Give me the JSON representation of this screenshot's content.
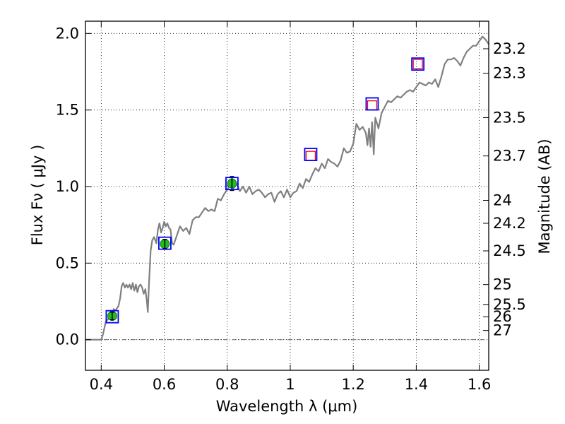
{
  "chart_data": {
    "type": "line",
    "xlabel": "Wavelength  λ (μm)",
    "ylabel": "Flux  Fν  ( μJy )",
    "y2label": "Magnitude (AB)",
    "xlim": [
      0.35,
      1.63
    ],
    "ylim": [
      -0.2,
      2.08
    ],
    "grid": true,
    "x_ticks": [
      {
        "value": 0.4,
        "label": "0.4"
      },
      {
        "value": 0.6,
        "label": "0.6"
      },
      {
        "value": 0.8,
        "label": "0.8"
      },
      {
        "value": 1.0,
        "label": "1"
      },
      {
        "value": 1.2,
        "label": "1.2"
      },
      {
        "value": 1.4,
        "label": "1.4"
      },
      {
        "value": 1.6,
        "label": "1.6"
      }
    ],
    "y_ticks": [
      {
        "value": 0.0,
        "label": "0.0"
      },
      {
        "value": 0.5,
        "label": "0.5"
      },
      {
        "value": 1.0,
        "label": "1.0"
      },
      {
        "value": 1.5,
        "label": "1.5"
      },
      {
        "value": 2.0,
        "label": "2.0"
      }
    ],
    "magnitude_ticks": [
      {
        "flux": 1.9,
        "label": "23.2"
      },
      {
        "flux": 1.74,
        "label": "23.3"
      },
      {
        "flux": 1.45,
        "label": "23.5"
      },
      {
        "flux": 1.2,
        "label": "23.7"
      },
      {
        "flux": 0.91,
        "label": "24"
      },
      {
        "flux": 0.76,
        "label": "24.2"
      },
      {
        "flux": 0.58,
        "label": "24.5"
      },
      {
        "flux": 0.36,
        "label": "25"
      },
      {
        "flux": 0.23,
        "label": "25.5"
      },
      {
        "flux": 0.15,
        "label": "26"
      },
      {
        "flux": 0.06,
        "label": "27"
      }
    ],
    "model_spectrum": {
      "color": "#808080",
      "x": [
        0.35,
        0.4,
        0.405,
        0.415,
        0.425,
        0.43,
        0.44,
        0.445,
        0.455,
        0.46,
        0.465,
        0.47,
        0.475,
        0.48,
        0.485,
        0.49,
        0.495,
        0.5,
        0.505,
        0.51,
        0.515,
        0.52,
        0.525,
        0.53,
        0.535,
        0.54,
        0.545,
        0.548,
        0.552,
        0.557,
        0.562,
        0.568,
        0.575,
        0.58,
        0.585,
        0.59,
        0.595,
        0.6,
        0.605,
        0.61,
        0.615,
        0.62,
        0.625,
        0.63,
        0.64,
        0.65,
        0.66,
        0.67,
        0.68,
        0.69,
        0.7,
        0.71,
        0.72,
        0.73,
        0.74,
        0.75,
        0.76,
        0.77,
        0.78,
        0.79,
        0.8,
        0.81,
        0.82,
        0.83,
        0.84,
        0.85,
        0.86,
        0.87,
        0.88,
        0.89,
        0.9,
        0.91,
        0.92,
        0.93,
        0.94,
        0.95,
        0.96,
        0.97,
        0.98,
        0.99,
        1.0,
        1.01,
        1.02,
        1.03,
        1.04,
        1.05,
        1.06,
        1.07,
        1.08,
        1.09,
        1.1,
        1.11,
        1.12,
        1.13,
        1.14,
        1.15,
        1.16,
        1.17,
        1.18,
        1.19,
        1.2,
        1.21,
        1.22,
        1.23,
        1.24,
        1.245,
        1.25,
        1.255,
        1.26,
        1.265,
        1.27,
        1.28,
        1.29,
        1.3,
        1.31,
        1.32,
        1.33,
        1.34,
        1.35,
        1.36,
        1.37,
        1.38,
        1.39,
        1.4,
        1.41,
        1.42,
        1.43,
        1.44,
        1.45,
        1.46,
        1.47,
        1.48,
        1.49,
        1.5,
        1.51,
        1.52,
        1.53,
        1.54,
        1.55,
        1.56,
        1.57,
        1.58,
        1.59,
        1.6,
        1.61,
        1.62,
        1.63
      ],
      "y": [
        0.0,
        0.0,
        0.03,
        0.12,
        0.14,
        0.13,
        0.2,
        0.19,
        0.22,
        0.27,
        0.35,
        0.37,
        0.34,
        0.36,
        0.34,
        0.36,
        0.33,
        0.37,
        0.32,
        0.36,
        0.31,
        0.35,
        0.36,
        0.34,
        0.3,
        0.33,
        0.25,
        0.18,
        0.38,
        0.58,
        0.65,
        0.67,
        0.63,
        0.72,
        0.76,
        0.7,
        0.73,
        0.77,
        0.74,
        0.76,
        0.73,
        0.72,
        0.63,
        0.62,
        0.68,
        0.74,
        0.71,
        0.73,
        0.69,
        0.78,
        0.8,
        0.8,
        0.83,
        0.86,
        0.84,
        0.85,
        0.84,
        0.92,
        0.91,
        0.95,
        0.98,
        1.02,
        0.99,
        1.02,
        0.97,
        1.0,
        0.96,
        1.0,
        0.95,
        0.97,
        0.98,
        0.96,
        0.93,
        0.95,
        0.96,
        0.9,
        0.95,
        0.97,
        0.93,
        0.98,
        0.93,
        0.96,
        0.97,
        1.02,
        0.99,
        1.05,
        1.03,
        1.08,
        1.12,
        1.1,
        1.15,
        1.12,
        1.18,
        1.16,
        1.15,
        1.13,
        1.17,
        1.25,
        1.22,
        1.23,
        1.28,
        1.41,
        1.37,
        1.39,
        1.35,
        1.27,
        1.38,
        1.26,
        1.42,
        1.21,
        1.45,
        1.38,
        1.48,
        1.52,
        1.56,
        1.55,
        1.57,
        1.59,
        1.58,
        1.6,
        1.62,
        1.63,
        1.62,
        1.65,
        1.68,
        1.67,
        1.66,
        1.68,
        1.67,
        1.7,
        1.65,
        1.72,
        1.8,
        1.83,
        1.83,
        1.84,
        1.82,
        1.79,
        1.84,
        1.88,
        1.9,
        1.92,
        1.92,
        1.95,
        1.98,
        1.96,
        1.93
      ]
    },
    "detections": {
      "marker_color": "#22bb22",
      "x": [
        0.435,
        0.602,
        0.815
      ],
      "y": [
        0.155,
        0.625,
        1.02
      ],
      "yerr": [
        0.025,
        0.03,
        0.045
      ]
    },
    "upper_limits": {
      "marker_color": "#ff0000",
      "x": [
        1.065,
        1.26,
        1.405
      ],
      "y": [
        1.2,
        1.53,
        1.8
      ]
    },
    "synthetic_photometry": {
      "marker_color": "#0000ff",
      "x": [
        0.435,
        0.602,
        0.815,
        1.065,
        1.26,
        1.405
      ],
      "y": [
        0.15,
        0.63,
        1.02,
        1.21,
        1.54,
        1.8
      ]
    }
  }
}
